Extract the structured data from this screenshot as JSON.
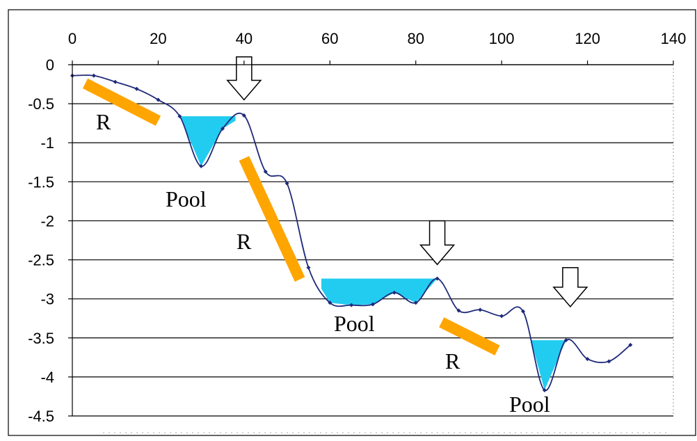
{
  "chart_data": {
    "type": "line",
    "title": "",
    "xlabel": "",
    "ylabel": "",
    "xlim": [
      0,
      140
    ],
    "ylim": [
      -4.5,
      0
    ],
    "x_ticks": [
      0,
      20,
      40,
      60,
      80,
      100,
      120,
      140
    ],
    "y_ticks": [
      0,
      -0.5,
      -1,
      -1.5,
      -2,
      -2.5,
      -3,
      -3.5,
      -4,
      -4.5
    ],
    "x_tick_labels": [
      "0",
      "20",
      "40",
      "60",
      "80",
      "100",
      "120",
      "140"
    ],
    "y_tick_labels": [
      "0",
      "-0.5",
      "-1",
      "-1.5",
      "-2",
      "-2.5",
      "-3",
      "-3.5",
      "-4",
      "-4.5"
    ],
    "x_axis_position": "top",
    "grid": "horizontal",
    "series": [
      {
        "color": "#1f2a7a",
        "points": [
          [
            0,
            -0.14
          ],
          [
            5,
            -0.14
          ],
          [
            10,
            -0.22
          ],
          [
            15,
            -0.31
          ],
          [
            20,
            -0.45
          ],
          [
            25,
            -0.66
          ],
          [
            30,
            -1.3
          ],
          [
            35,
            -0.82
          ],
          [
            40,
            -0.65
          ],
          [
            45,
            -1.37
          ],
          [
            50,
            -1.52
          ],
          [
            55,
            -2.6
          ],
          [
            60,
            -3.05
          ],
          [
            65,
            -3.08
          ],
          [
            70,
            -3.07
          ],
          [
            75,
            -2.92
          ],
          [
            80,
            -3.05
          ],
          [
            85,
            -2.74
          ],
          [
            90,
            -3.15
          ],
          [
            95,
            -3.14
          ],
          [
            100,
            -3.22
          ],
          [
            105,
            -3.16
          ],
          [
            110,
            -4.17
          ],
          [
            115,
            -3.53
          ],
          [
            120,
            -3.77
          ],
          [
            125,
            -3.8
          ],
          [
            130,
            -3.59
          ]
        ]
      }
    ],
    "annotations": {
      "pools": [
        {
          "label": "Pool",
          "water_level": -0.66,
          "x_range": [
            25,
            38
          ]
        },
        {
          "label": "Pool",
          "water_level": -2.74,
          "x_range": [
            58,
            85
          ]
        },
        {
          "label": "Pool",
          "water_level": -3.53,
          "x_range": [
            107,
            115
          ]
        }
      ],
      "riffles": [
        {
          "label": "R",
          "from": [
            3,
            -0.24
          ],
          "to": [
            20,
            -0.72
          ]
        },
        {
          "label": "R",
          "from": [
            40,
            -1.2
          ],
          "to": [
            53,
            -2.75
          ]
        },
        {
          "label": "R",
          "from": [
            86,
            -3.3
          ],
          "to": [
            99,
            -3.66
          ]
        }
      ],
      "arrows": [
        {
          "x": 40,
          "y_top": 0.1,
          "y_tip": -0.45
        },
        {
          "x": 85,
          "y_top": -2.0,
          "y_tip": -2.56
        },
        {
          "x": 116,
          "y_top": -2.6,
          "y_tip": -3.1
        }
      ]
    },
    "colors": {
      "line": "#1f2a7a",
      "pool_fill": "#22ccf0",
      "riffle_bar": "#ffa500",
      "grid": "#000000",
      "arrow_fill": "#ffffff",
      "arrow_stroke": "#000000"
    }
  }
}
